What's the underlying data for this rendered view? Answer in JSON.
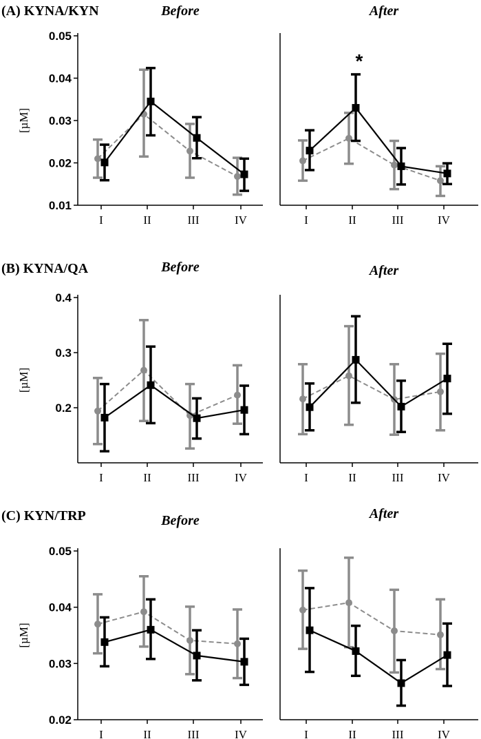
{
  "colors": {
    "series_a": "#8c8c8c",
    "series_b": "#000000"
  },
  "chart_data": [
    {
      "id": "A",
      "type": "line",
      "title": "(A) KYNA/KYN",
      "ylabel": "[µM]",
      "ylim": [
        0.01,
        0.05
      ],
      "yticks": [
        "0.01",
        "0.02",
        "0.03",
        "0.04",
        "0.05"
      ],
      "categories": [
        "I",
        "II",
        "III",
        "IV"
      ],
      "subplots": [
        {
          "condition": "Before",
          "annotation": null,
          "series": [
            {
              "name": "gray (dashed)",
              "style": "dashed",
              "values": [
                0.021,
                0.0315,
                0.0228,
                0.0168
              ],
              "err_low": [
                0.0165,
                0.0215,
                0.0165,
                0.0125
              ],
              "err_high": [
                0.0255,
                0.042,
                0.0292,
                0.0212
              ]
            },
            {
              "name": "black (solid)",
              "style": "solid",
              "values": [
                0.0201,
                0.0345,
                0.0259,
                0.0173
              ],
              "err_low": [
                0.0159,
                0.0265,
                0.0211,
                0.0134
              ],
              "err_high": [
                0.0243,
                0.0424,
                0.0308,
                0.021
              ]
            }
          ]
        },
        {
          "condition": "After",
          "annotation": {
            "text": "*",
            "category": "II"
          },
          "series": [
            {
              "name": "gray (dashed)",
              "style": "dashed",
              "values": [
                0.0205,
                0.0258,
                0.0195,
                0.0158
              ],
              "err_low": [
                0.0158,
                0.0198,
                0.0138,
                0.0122
              ],
              "err_high": [
                0.0253,
                0.0318,
                0.0252,
                0.0192
              ]
            },
            {
              "name": "black (solid)",
              "style": "solid",
              "values": [
                0.0229,
                0.033,
                0.0192,
                0.0175
              ],
              "err_low": [
                0.0183,
                0.0252,
                0.0149,
                0.015
              ],
              "err_high": [
                0.0277,
                0.0409,
                0.0235,
                0.0199
              ]
            }
          ]
        }
      ]
    },
    {
      "id": "B",
      "type": "line",
      "title": "(B) KYNA/QA",
      "ylabel": "[µM]",
      "ylim": [
        0.1,
        0.4
      ],
      "yticks": [
        "0.2",
        "0.3",
        "0.4"
      ],
      "categories": [
        "I",
        "II",
        "III",
        "IV"
      ],
      "subplots": [
        {
          "condition": "Before",
          "annotation": null,
          "series": [
            {
              "name": "gray (dashed)",
              "style": "dashed",
              "values": [
                0.194,
                0.268,
                0.186,
                0.223
              ],
              "err_low": [
                0.134,
                0.176,
                0.126,
                0.171
              ],
              "err_high": [
                0.254,
                0.359,
                0.243,
                0.277
              ]
            },
            {
              "name": "black (solid)",
              "style": "solid",
              "values": [
                0.182,
                0.241,
                0.181,
                0.196
              ],
              "err_low": [
                0.121,
                0.172,
                0.144,
                0.152
              ],
              "err_high": [
                0.243,
                0.311,
                0.217,
                0.24
              ]
            }
          ]
        },
        {
          "condition": "After",
          "annotation": null,
          "series": [
            {
              "name": "gray (dashed)",
              "style": "dashed",
              "values": [
                0.216,
                0.258,
                0.215,
                0.229
              ],
              "err_low": [
                0.152,
                0.169,
                0.151,
                0.159
              ],
              "err_high": [
                0.279,
                0.348,
                0.279,
                0.298
              ]
            },
            {
              "name": "black (solid)",
              "style": "solid",
              "values": [
                0.201,
                0.287,
                0.202,
                0.253
              ],
              "err_low": [
                0.159,
                0.209,
                0.156,
                0.189
              ],
              "err_high": [
                0.244,
                0.366,
                0.249,
                0.316
              ]
            }
          ]
        }
      ]
    },
    {
      "id": "C",
      "type": "line",
      "title": "(C) KYN/TRP",
      "ylabel": "[µM]",
      "ylim": [
        0.02,
        0.05
      ],
      "yticks": [
        "0.02",
        "0.03",
        "0.04",
        "0.05"
      ],
      "categories": [
        "I",
        "II",
        "III",
        "IV"
      ],
      "subplots": [
        {
          "condition": "Before",
          "annotation": null,
          "series": [
            {
              "name": "gray (dashed)",
              "style": "dashed",
              "values": [
                0.037,
                0.0392,
                0.0341,
                0.0335
              ],
              "err_low": [
                0.0318,
                0.033,
                0.0281,
                0.0274
              ],
              "err_high": [
                0.0423,
                0.0455,
                0.0401,
                0.0396
              ]
            },
            {
              "name": "black (solid)",
              "style": "solid",
              "values": [
                0.0338,
                0.036,
                0.0314,
                0.0303
              ],
              "err_low": [
                0.0295,
                0.0308,
                0.027,
                0.0262
              ],
              "err_high": [
                0.0382,
                0.0414,
                0.0359,
                0.0344
              ]
            }
          ]
        },
        {
          "condition": "After",
          "annotation": null,
          "series": [
            {
              "name": "gray (dashed)",
              "style": "dashed",
              "values": [
                0.0395,
                0.0408,
                0.0358,
                0.0351
              ],
              "err_low": [
                0.0326,
                0.0329,
                0.0284,
                0.029
              ],
              "err_high": [
                0.0465,
                0.0488,
                0.0431,
                0.0414
              ]
            },
            {
              "name": "black (solid)",
              "style": "solid",
              "values": [
                0.0359,
                0.0322,
                0.0265,
                0.0315
              ],
              "err_low": [
                0.0285,
                0.0278,
                0.0225,
                0.026
              ],
              "err_high": [
                0.0434,
                0.0367,
                0.0306,
                0.0371
              ]
            }
          ]
        }
      ]
    }
  ]
}
